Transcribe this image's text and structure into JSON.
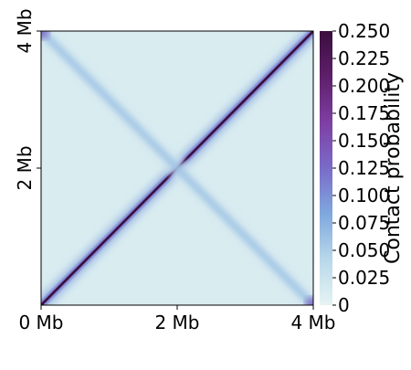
{
  "chart_data": {
    "type": "heatmap",
    "title": "",
    "xlabel": "",
    "ylabel": "",
    "x_unit": "Mb",
    "y_unit": "Mb",
    "xlim": [
      0,
      4
    ],
    "ylim": [
      0,
      4
    ],
    "x_ticks": [
      {
        "value": 0,
        "label": "0 Mb"
      },
      {
        "value": 2,
        "label": "2 Mb"
      },
      {
        "value": 4,
        "label": "4 Mb"
      }
    ],
    "y_ticks": [
      {
        "value": 2,
        "label": "2 Mb"
      },
      {
        "value": 4,
        "label": "4 Mb"
      }
    ],
    "structure": [
      {
        "feature": "main diagonal",
        "from": [
          0,
          0
        ],
        "to": [
          4,
          4
        ],
        "peak_value": 0.25
      },
      {
        "feature": "anti-diagonal",
        "from": [
          0,
          4
        ],
        "to": [
          4,
          0
        ],
        "peak_value": 0.06
      }
    ],
    "background_value": 0.012,
    "colorbar": {
      "label": "Contact probability",
      "range": [
        0,
        0.25
      ],
      "ticks": [
        {
          "value": 0,
          "label": "0"
        },
        {
          "value": 0.025,
          "label": "0.025"
        },
        {
          "value": 0.05,
          "label": "0.050"
        },
        {
          "value": 0.075,
          "label": "0.075"
        },
        {
          "value": 0.1,
          "label": "0.100"
        },
        {
          "value": 0.125,
          "label": "0.125"
        },
        {
          "value": 0.15,
          "label": "0.150"
        },
        {
          "value": 0.175,
          "label": "0.175"
        },
        {
          "value": 0.2,
          "label": "0.200"
        },
        {
          "value": 0.225,
          "label": "0.225"
        },
        {
          "value": 0.25,
          "label": "0.250"
        }
      ],
      "colors": [
        "#e6f4f3",
        "#b8d8ea",
        "#7fa8de",
        "#7a6bc9",
        "#7e3fa3",
        "#5e1f6a",
        "#3a0e3e"
      ]
    }
  }
}
